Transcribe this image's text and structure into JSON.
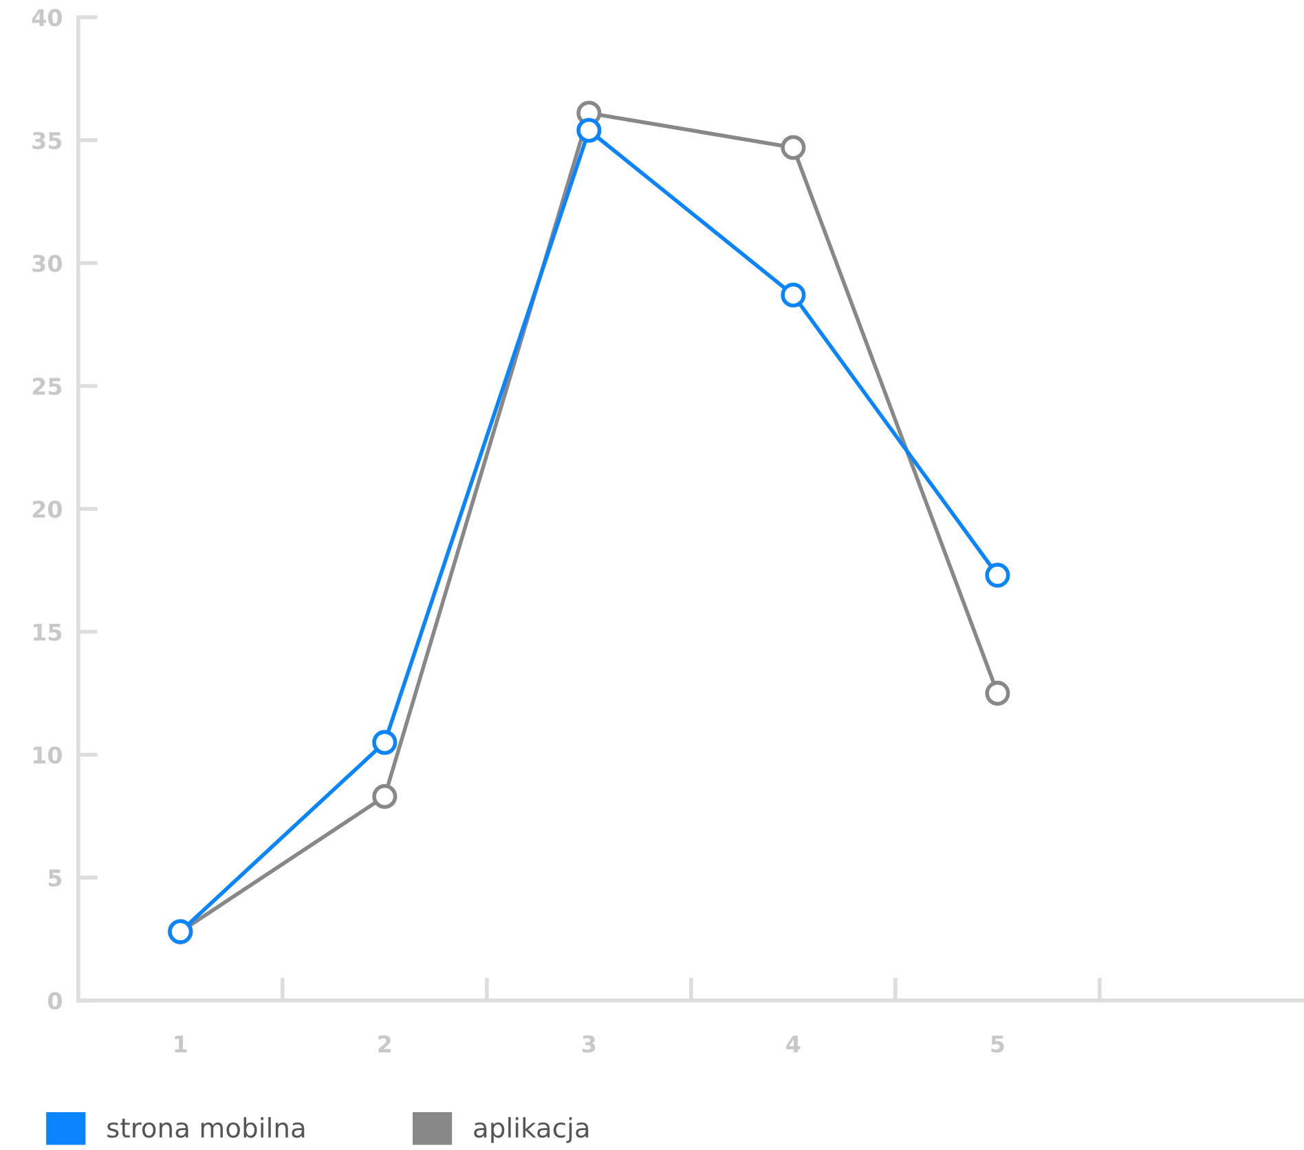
{
  "chart_data": {
    "type": "line",
    "categories": [
      "1",
      "2",
      "3",
      "4",
      "5",
      null
    ],
    "series": [
      {
        "name": "strona mobilna",
        "color": "#0a84ff",
        "values": [
          2.8,
          10.5,
          35.4,
          28.7,
          17.3,
          null
        ]
      },
      {
        "name": "aplikacja",
        "color": "#888888",
        "values": [
          2.8,
          8.3,
          36.1,
          34.7,
          12.5,
          null
        ]
      }
    ],
    "ylim": [
      0,
      40
    ],
    "yticks": [
      0,
      5,
      10,
      15,
      20,
      25,
      30,
      35,
      40
    ],
    "grid": false,
    "legend": "bottom",
    "marker": "circle",
    "line_style": "solid"
  }
}
